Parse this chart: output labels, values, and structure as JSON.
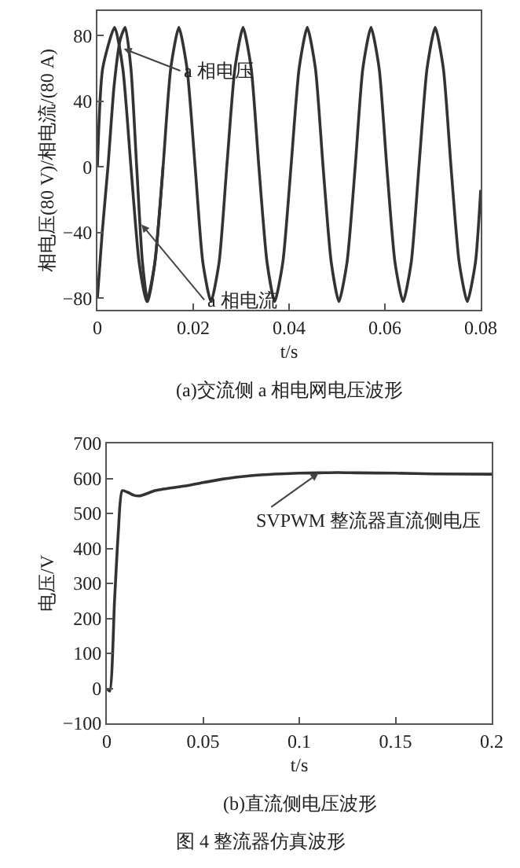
{
  "chart_data": [
    {
      "type": "line",
      "title": "(a)交流侧 a 相电网电压波形",
      "xlabel": "t/s",
      "ylabel": "相电压(80 V)/相电流/(80 A)",
      "xlim": [
        0,
        0.08
      ],
      "xticks": [
        0,
        0.02,
        0.04,
        0.06,
        0.08
      ],
      "ylim": [
        -87,
        95
      ],
      "yticks": [
        -80,
        -40,
        0,
        40,
        80
      ],
      "grid": false,
      "series": [
        {
          "color": "#333333",
          "x": [
            0,
            0.0011,
            0.0036,
            0.0053,
            0.007,
            0.0087,
            0.0103,
            0.012,
            0.0137,
            0.0153,
            0.017,
            0.0187,
            0.0204,
            0.022,
            0.0237,
            0.0254,
            0.027,
            0.0287,
            0.0304,
            0.0321,
            0.0337,
            0.0354,
            0.037,
            0.0387,
            0.0404,
            0.0421,
            0.0438,
            0.0455,
            0.0471,
            0.0488,
            0.0504,
            0.0521,
            0.0538,
            0.0554,
            0.0571,
            0.0588,
            0.0604,
            0.0621,
            0.0638,
            0.0655,
            0.0671,
            0.0688,
            0.0705,
            0.0722,
            0.0738,
            0.0755,
            0.0772,
            0.0789,
            0.08
          ],
          "values": [
            0,
            60,
            85,
            60,
            0,
            -58,
            -82,
            -58,
            0,
            60,
            85,
            60,
            0,
            -58,
            -82,
            -58,
            0,
            60,
            85,
            60,
            0,
            -58,
            -82,
            -58,
            0,
            60,
            85,
            60,
            0,
            -58,
            -82,
            -58,
            0,
            60,
            85,
            60,
            0,
            -58,
            -82,
            -58,
            0,
            60,
            85,
            60,
            0,
            -58,
            -82,
            -58,
            -14
          ]
        },
        {
          "color": "#333333",
          "x": [
            0,
            0.001,
            0.0022,
            0.0035,
            0.0048,
            0.0058,
            0.007,
            0.0082,
            0.0094,
            0.0105,
            0.012,
            0.0137
          ],
          "values": [
            -80,
            -40,
            0,
            50,
            78,
            85,
            60,
            0,
            -58,
            -82,
            -58,
            0
          ]
        }
      ],
      "annotations": [
        {
          "text": "a 相电压",
          "x": 0.0055,
          "y": 72
        },
        {
          "text": "a 相电流",
          "x": 0.0092,
          "y": -35
        }
      ]
    },
    {
      "type": "line",
      "title": "(b)直流侧电压波形",
      "xlabel": "t/s",
      "ylabel": "电压/V",
      "xlim": [
        0,
        0.2
      ],
      "xticks": [
        0,
        0.05,
        0.1,
        0.15,
        0.2
      ],
      "ylim": [
        -100,
        700
      ],
      "yticks": [
        -100,
        0,
        100,
        200,
        300,
        400,
        500,
        600,
        700
      ],
      "grid": false,
      "series": [
        {
          "color": "#333333",
          "x": [
            0,
            0.0015,
            0.004,
            0.006,
            0.008,
            0.011,
            0.014,
            0.017,
            0.02,
            0.025,
            0.03,
            0.04,
            0.05,
            0.06,
            0.07,
            0.08,
            0.09,
            0.1,
            0.11,
            0.12,
            0.13,
            0.15,
            0.17,
            0.2
          ],
          "values": [
            0,
            -8,
            250,
            450,
            565,
            560,
            552,
            550,
            555,
            565,
            570,
            578,
            588,
            598,
            605,
            610,
            613,
            615,
            616,
            617,
            616,
            615,
            613,
            612
          ]
        }
      ],
      "annotations": [
        {
          "text": "SVPWM 整流器直流侧电压",
          "x": 0.11,
          "y": 615
        },
        "图 4 整流器仿真波形"
      ]
    }
  ]
}
